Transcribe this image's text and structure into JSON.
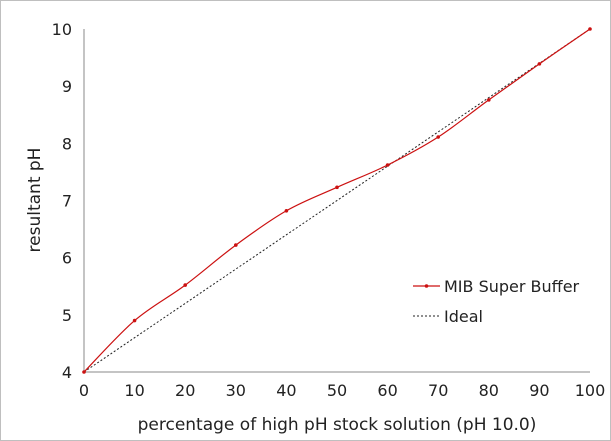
{
  "chart_data": {
    "type": "line",
    "xlabel": "percentage of high pH stock solution (pH 10.0)",
    "ylabel": "resultant pH",
    "xlim": [
      0,
      100
    ],
    "ylim": [
      4,
      10
    ],
    "xticks": [
      0,
      10,
      20,
      30,
      40,
      50,
      60,
      70,
      80,
      90,
      100
    ],
    "yticks": [
      4,
      5,
      6,
      7,
      8,
      9,
      10
    ],
    "grid": false,
    "legend_position": "bottom-right",
    "series": [
      {
        "name": "MIB Super Buffer",
        "color": "#cc1111",
        "style": "solid-smooth-with-markers",
        "x": [
          0,
          10,
          20,
          30,
          40,
          50,
          60,
          70,
          80,
          90,
          100
        ],
        "y": [
          4.0,
          4.9,
          5.52,
          6.22,
          6.82,
          7.23,
          7.62,
          8.11,
          8.76,
          9.39,
          10.0
        ]
      },
      {
        "name": "Ideal",
        "color": "#222222",
        "style": "dotted",
        "x": [
          0,
          100
        ],
        "y": [
          4.0,
          10.0
        ]
      }
    ]
  }
}
